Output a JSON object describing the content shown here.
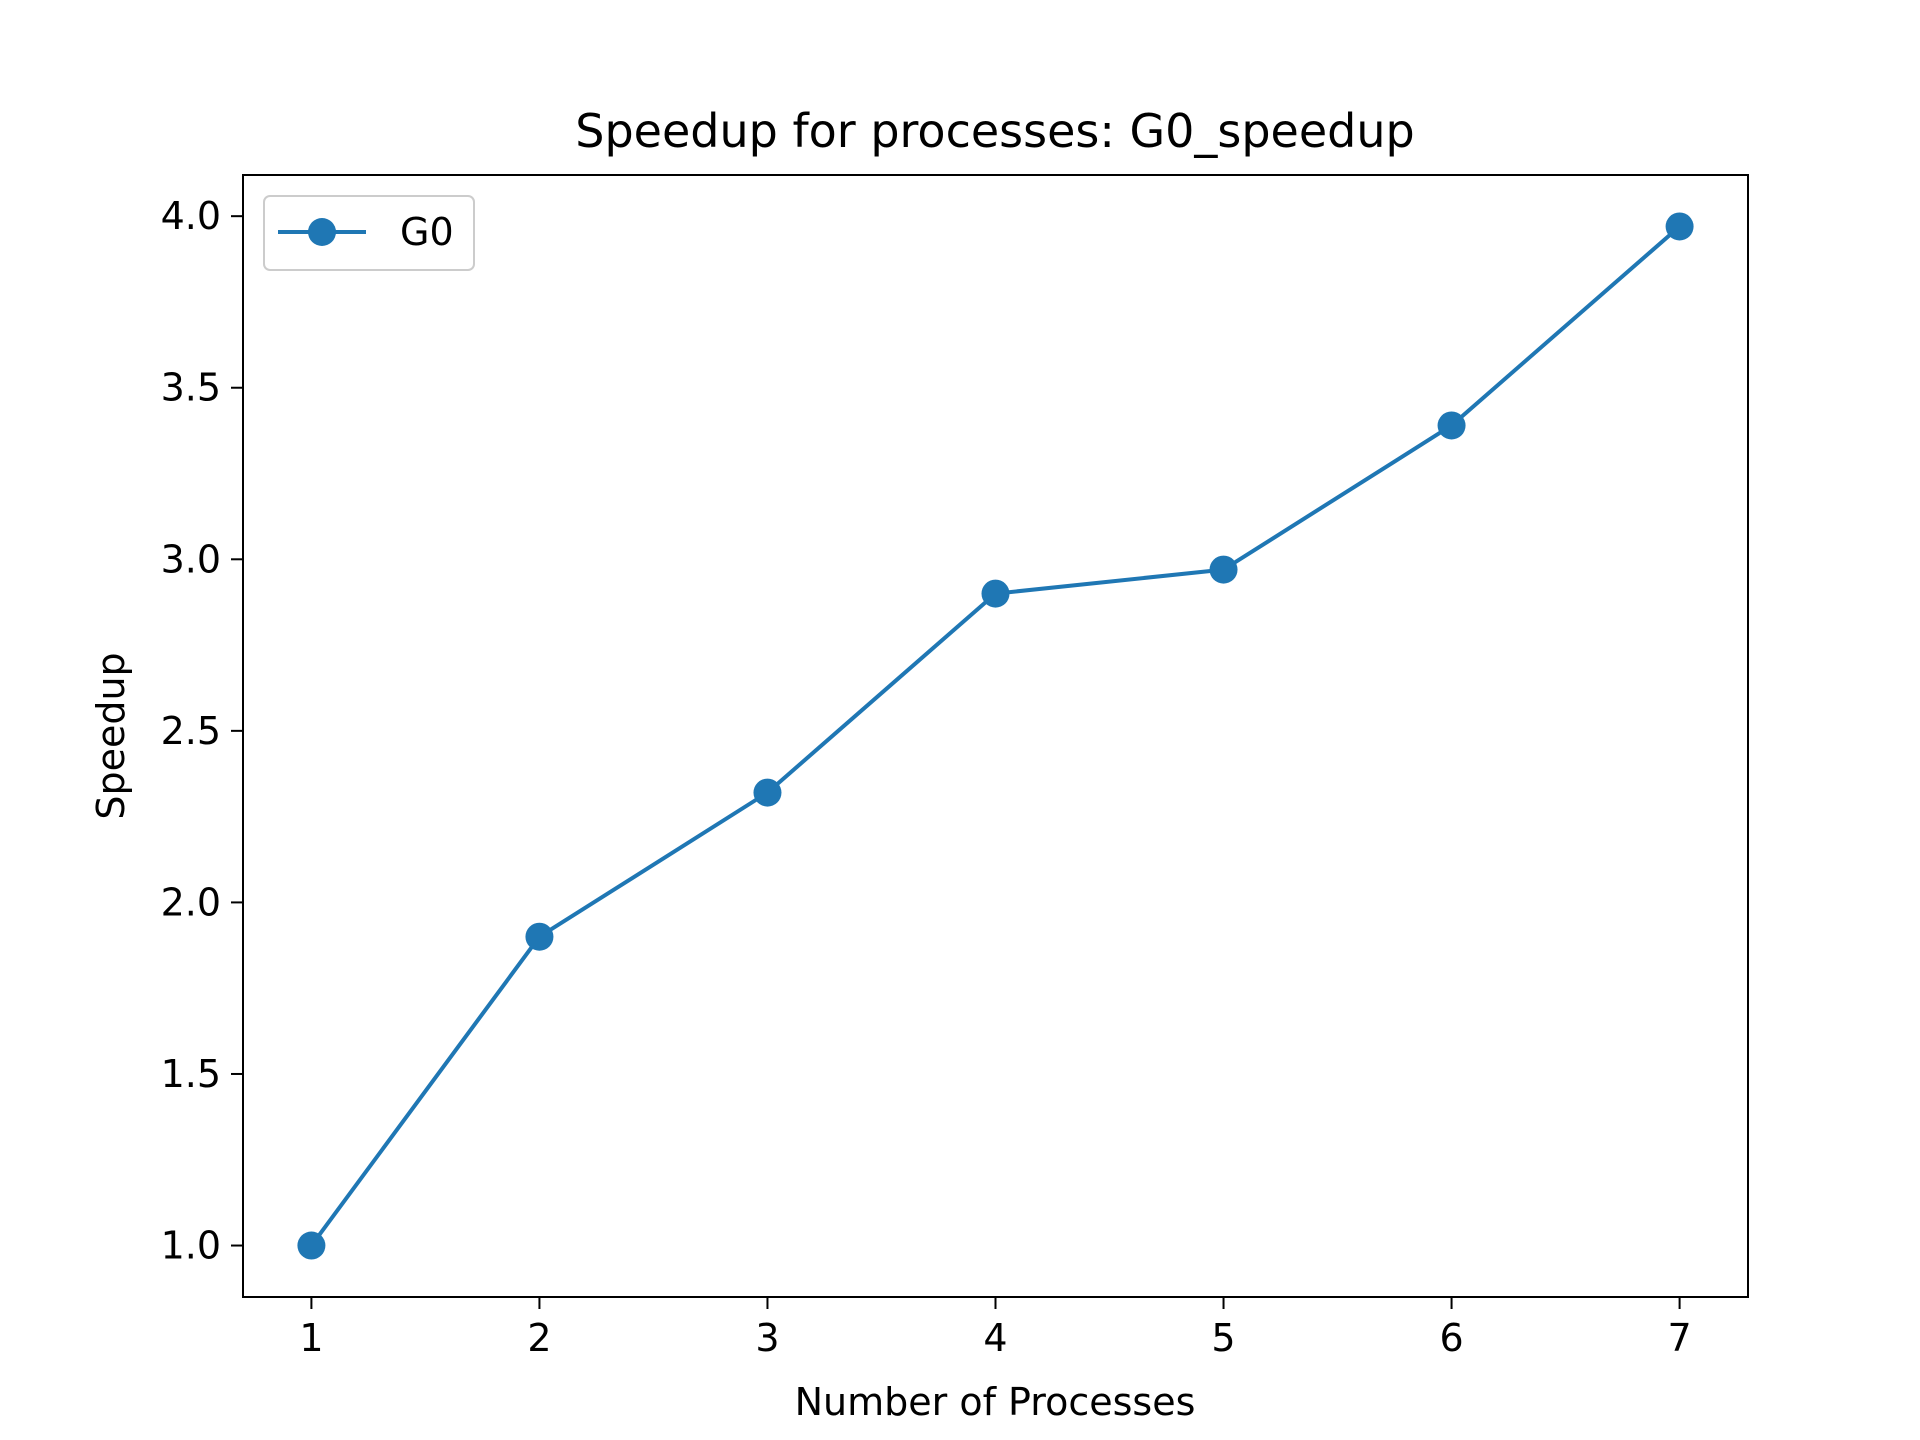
{
  "chart_data": {
    "type": "line",
    "title": "Speedup for processes: G0_speedup",
    "xlabel": "Number of Processes",
    "ylabel": "Speedup",
    "x": [
      1,
      2,
      3,
      4,
      5,
      6,
      7
    ],
    "xticks": [
      "1",
      "2",
      "3",
      "4",
      "5",
      "6",
      "7"
    ],
    "yticks": [
      "1.0",
      "1.5",
      "2.0",
      "2.5",
      "3.0",
      "3.5",
      "4.0"
    ],
    "xlim": [
      0.7,
      7.3
    ],
    "ylim": [
      0.85,
      4.12
    ],
    "grid": false,
    "legend_position": "top-left",
    "series": [
      {
        "name": "G0",
        "color": "#1f77b4",
        "marker": "circle",
        "values": [
          1.0,
          1.9,
          2.32,
          2.9,
          2.97,
          3.39,
          3.97
        ]
      }
    ]
  }
}
